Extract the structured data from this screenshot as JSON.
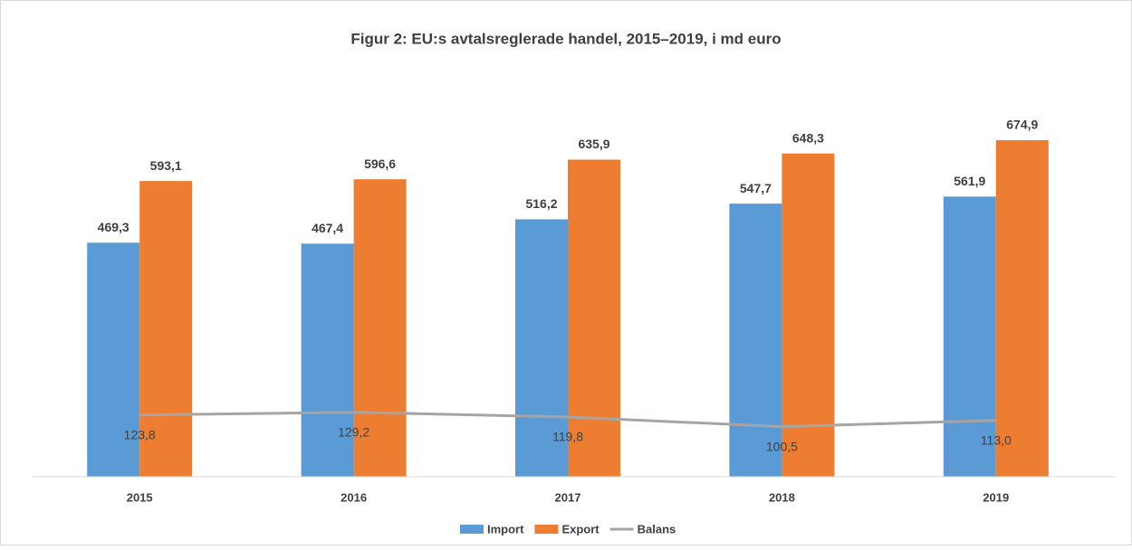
{
  "chart_data": {
    "type": "bar",
    "title": "Figur 2: EU:s avtalsreglerade  handel, 2015–2019, i md euro",
    "categories": [
      "2015",
      "2016",
      "2017",
      "2018",
      "2019"
    ],
    "series": [
      {
        "name": "Import",
        "type": "bar",
        "color": "#5b9bd5",
        "values": [
          469.3,
          467.4,
          516.2,
          547.7,
          561.9
        ],
        "value_labels": [
          "469,3",
          "467,4",
          "516,2",
          "547,7",
          "561,9"
        ]
      },
      {
        "name": "Export",
        "type": "bar",
        "color": "#ed7d31",
        "values": [
          593.1,
          596.6,
          635.9,
          648.3,
          674.9
        ],
        "value_labels": [
          "593,1",
          "596,6",
          "635,9",
          "648,3",
          "674,9"
        ]
      },
      {
        "name": "Balans",
        "type": "line",
        "color": "#a5a5a5",
        "values": [
          123.8,
          129.2,
          119.8,
          100.5,
          113.0
        ],
        "value_labels": [
          "123,8",
          "129,2",
          "119,8",
          "100,5",
          "113,0"
        ]
      }
    ],
    "legend": "bottom"
  }
}
